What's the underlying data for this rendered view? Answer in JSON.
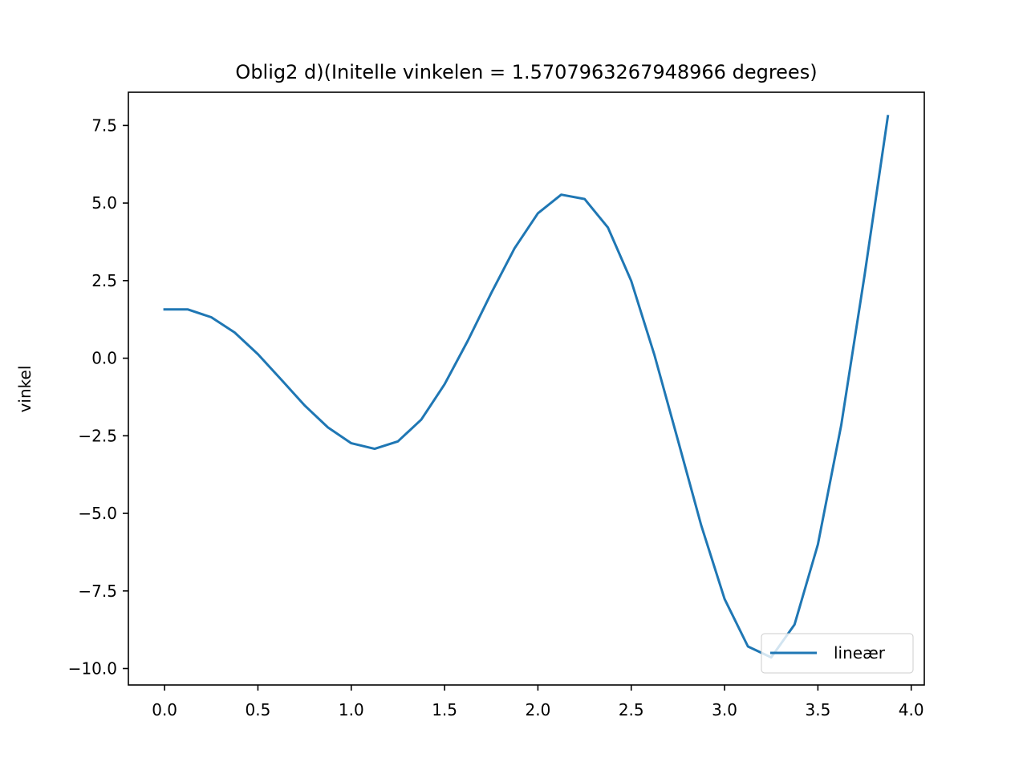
{
  "chart_data": {
    "type": "line",
    "title": "Oblig2 d)(Initelle vinkelen = 1.5707963267948966 degrees)",
    "xlabel": "",
    "ylabel": "vinkel",
    "xlim": [
      -0.194,
      4.07
    ],
    "ylim": [
      -10.53,
      8.57
    ],
    "xticks": [
      0.0,
      0.5,
      1.0,
      1.5,
      2.0,
      2.5,
      3.0,
      3.5,
      4.0
    ],
    "xtick_labels": [
      "0.0",
      "0.5",
      "1.0",
      "1.5",
      "2.0",
      "2.5",
      "3.0",
      "3.5",
      "4.0"
    ],
    "yticks": [
      7.5,
      5.0,
      2.5,
      0.0,
      -2.5,
      -5.0,
      -7.5,
      -10.0
    ],
    "ytick_labels": [
      "7.5",
      "5.0",
      "2.5",
      "0.0",
      "−2.5",
      "−5.0",
      "−7.5",
      "−10.0"
    ],
    "grid": false,
    "legend_position": "lower-right",
    "series": [
      {
        "name": "lineær",
        "color": "#1f77b4",
        "x": [
          0.0,
          0.125,
          0.25,
          0.375,
          0.5,
          0.625,
          0.75,
          0.875,
          1.0,
          1.125,
          1.25,
          1.375,
          1.5,
          1.625,
          1.75,
          1.875,
          2.0,
          2.125,
          2.25,
          2.375,
          2.5,
          2.625,
          2.75,
          2.875,
          3.0,
          3.125,
          3.25,
          3.375,
          3.5,
          3.625,
          3.75,
          3.875
        ],
        "y": [
          1.571,
          1.571,
          1.32,
          0.83,
          0.13,
          -0.69,
          -1.52,
          -2.23,
          -2.74,
          -2.92,
          -2.68,
          -1.98,
          -0.84,
          0.57,
          2.1,
          3.54,
          4.67,
          5.27,
          5.13,
          4.21,
          2.49,
          0.09,
          -2.64,
          -5.39,
          -7.76,
          -9.29,
          -9.64,
          -8.58,
          -6.0,
          -2.15,
          2.68,
          7.8
        ]
      }
    ]
  }
}
